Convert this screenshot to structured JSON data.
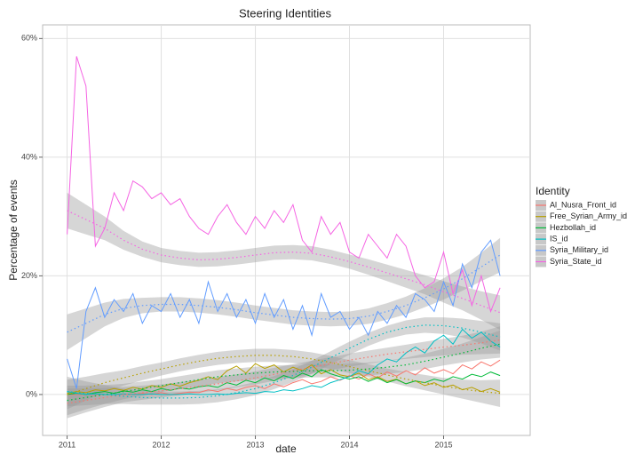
{
  "chart_data": {
    "type": "line",
    "title": "Steering Identities",
    "x_label": "date",
    "y_label": "Percentage of events",
    "legend_title": "Identity",
    "legend_position": "right",
    "grid": true,
    "xlim": [
      2010.74,
      2015.92
    ],
    "xticks": [
      2011,
      2012,
      2013,
      2014,
      2015
    ],
    "ylim": [
      -6.9,
      62.3
    ],
    "yticks": [
      {
        "value": 0,
        "label": "0%"
      },
      {
        "value": 20,
        "label": "20%"
      },
      {
        "value": 40,
        "label": "40%"
      },
      {
        "value": 60,
        "label": "60%"
      }
    ],
    "x": [
      2011,
      2011.1,
      2011.2,
      2011.3,
      2011.4,
      2011.5,
      2011.6,
      2011.7,
      2011.8,
      2011.9,
      2012,
      2012.1,
      2012.2,
      2012.3,
      2012.4,
      2012.5,
      2012.6,
      2012.7,
      2012.8,
      2012.9,
      2013,
      2013.1,
      2013.2,
      2013.3,
      2013.4,
      2013.5,
      2013.6,
      2013.7,
      2013.8,
      2013.9,
      2014,
      2014.1,
      2014.2,
      2014.3,
      2014.4,
      2014.5,
      2014.6,
      2014.7,
      2014.8,
      2014.9,
      2015,
      2015.1,
      2015.2,
      2015.3,
      2015.4,
      2015.5,
      2015.6
    ],
    "smooth_x": [
      2011,
      2011.2,
      2011.4,
      2011.6,
      2011.8,
      2012,
      2012.2,
      2012.4,
      2012.6,
      2012.8,
      2013,
      2013.2,
      2013.4,
      2013.6,
      2013.8,
      2014,
      2014.2,
      2014.4,
      2014.6,
      2014.8,
      2015,
      2015.2,
      2015.4,
      2015.6
    ],
    "series": [
      {
        "name": "Al_Nusra_Front_id",
        "color": "#F8766D",
        "values": [
          0,
          0,
          0,
          0,
          0,
          0,
          0,
          0,
          0.2,
          0,
          0.3,
          0,
          0.2,
          0.4,
          0.3,
          0.8,
          0.5,
          1,
          0.7,
          1.2,
          1.5,
          1,
          1.8,
          1.3,
          2,
          2.5,
          1.8,
          2.2,
          3,
          2.4,
          3.2,
          2.6,
          3.5,
          2.8,
          3.8,
          3.1,
          4,
          3.3,
          4.5,
          3.6,
          4.2,
          3.5,
          5,
          4.3,
          5.5,
          4.8,
          5.8
        ],
        "smooth": [
          -1.5,
          -1,
          -0.5,
          0,
          0.3,
          0.6,
          1,
          1.4,
          1.8,
          2.3,
          2.8,
          3.4,
          4,
          4.6,
          5.2,
          5.8,
          6.3,
          6.8,
          7.2,
          7.6,
          8,
          8.3,
          8.7,
          9.2
        ],
        "se": [
          2.5,
          2,
          1.6,
          1.3,
          1.2,
          1.1,
          1.1,
          1.1,
          1.1,
          1.1,
          1.1,
          1.1,
          1.1,
          1.1,
          1.1,
          1.1,
          1.1,
          1.1,
          1.2,
          1.3,
          1.4,
          1.6,
          1.9,
          2.3
        ]
      },
      {
        "name": "Free_Syrian_Army_id",
        "color": "#B79F00",
        "values": [
          0.2,
          0.5,
          0.3,
          0.8,
          0.6,
          1,
          0.7,
          1.2,
          0.9,
          1.5,
          1.2,
          1.8,
          1.4,
          2,
          2.4,
          3,
          2.5,
          4,
          4.8,
          3.6,
          5.2,
          4.4,
          5,
          3.8,
          4.6,
          4,
          5,
          3.5,
          4.2,
          3.3,
          3,
          3.6,
          2.5,
          3,
          2.2,
          2.6,
          1.8,
          2.3,
          1.5,
          2,
          1.2,
          1.6,
          0.8,
          1.2,
          0.5,
          1,
          0.4
        ],
        "smooth": [
          0,
          1,
          2,
          2.8,
          3.6,
          4.3,
          5,
          5.6,
          6.1,
          6.4,
          6.6,
          6.6,
          6.4,
          6,
          5.4,
          4.7,
          4,
          3.3,
          2.6,
          2,
          1.4,
          0.9,
          0.5,
          0.2
        ],
        "se": [
          2.5,
          2,
          1.6,
          1.3,
          1.2,
          1.1,
          1.1,
          1.1,
          1.1,
          1.1,
          1.1,
          1.1,
          1.1,
          1.1,
          1.1,
          1.1,
          1.1,
          1.1,
          1.2,
          1.3,
          1.4,
          1.6,
          1.9,
          2.3
        ]
      },
      {
        "name": "Hezbollah_id",
        "color": "#00BA38",
        "values": [
          0,
          0.2,
          0,
          0.3,
          0.5,
          0.2,
          0.6,
          0.4,
          0.8,
          0.5,
          1,
          0.7,
          1.1,
          0.9,
          1.3,
          1.5,
          1.2,
          2,
          1.6,
          2.4,
          2,
          2.8,
          2.3,
          3.2,
          2.7,
          3.6,
          3,
          4.2,
          3.5,
          3,
          2.6,
          3,
          2.2,
          2.8,
          2,
          2.5,
          1.8,
          2.3,
          2,
          2.6,
          2.2,
          3,
          2.6,
          3.4,
          3,
          3.8,
          3.2
        ],
        "smooth": [
          -1,
          -0.5,
          0,
          0.5,
          1,
          1.5,
          2,
          2.5,
          3,
          3.3,
          3.6,
          3.8,
          3.9,
          4,
          4,
          4.1,
          4.3,
          4.6,
          5,
          5.6,
          6.3,
          7,
          7.8,
          8.5
        ],
        "se": [
          2.5,
          2,
          1.6,
          1.3,
          1.2,
          1.1,
          1.1,
          1.1,
          1.1,
          1.1,
          1.1,
          1.1,
          1.1,
          1.1,
          1.1,
          1.1,
          1.1,
          1.1,
          1.2,
          1.3,
          1.4,
          1.6,
          1.9,
          2.3
        ]
      },
      {
        "name": "IS_id",
        "color": "#00BFC4",
        "values": [
          0.5,
          0.2,
          0,
          0.1,
          0,
          0,
          0.1,
          0,
          0,
          0.1,
          0,
          0,
          0,
          0.1,
          0,
          0,
          0.1,
          0,
          0.2,
          0.3,
          0.2,
          0.5,
          0.4,
          0.8,
          0.6,
          1,
          1.5,
          1.2,
          2,
          2.5,
          3,
          4,
          3.5,
          5,
          6,
          5.5,
          7,
          8,
          7,
          9,
          10,
          8.5,
          11,
          9.5,
          10.5,
          9,
          8
        ],
        "smooth": [
          0.5,
          0.2,
          0,
          -0.3,
          -0.5,
          -0.6,
          -0.6,
          -0.5,
          -0.2,
          0.3,
          1,
          2,
          3.2,
          4.6,
          6.2,
          7.8,
          9.3,
          10.5,
          11.3,
          11.7,
          11.6,
          11.2,
          10.5,
          9.7
        ],
        "se": [
          2.5,
          2,
          1.6,
          1.3,
          1.2,
          1.1,
          1.1,
          1.1,
          1.1,
          1.1,
          1.1,
          1.1,
          1.1,
          1.1,
          1.1,
          1.1,
          1.1,
          1.1,
          1.2,
          1.3,
          1.4,
          1.6,
          1.9,
          2.3
        ]
      },
      {
        "name": "Syria_Military_id",
        "color": "#619CFF",
        "values": [
          6,
          1,
          14,
          18,
          13,
          16,
          14,
          17,
          12,
          15,
          14,
          17,
          13,
          16,
          12,
          19,
          14,
          17,
          13,
          16,
          12,
          17,
          13,
          16,
          11,
          15,
          10,
          17,
          13,
          14,
          11,
          13,
          10,
          14,
          12,
          15,
          13,
          17,
          16,
          14,
          19,
          15,
          22,
          18,
          24,
          26,
          20
        ],
        "smooth": [
          10.5,
          12,
          13.5,
          14.5,
          15,
          15.2,
          15.2,
          15,
          14.7,
          14.3,
          13.8,
          13.4,
          13,
          12.8,
          12.7,
          12.8,
          13.2,
          14,
          15,
          16.3,
          17.8,
          19.5,
          21.5,
          23.5
        ],
        "se": [
          3,
          2.5,
          2,
          1.6,
          1.3,
          1.2,
          1.2,
          1.2,
          1.2,
          1.2,
          1.2,
          1.2,
          1.2,
          1.2,
          1.2,
          1.2,
          1.3,
          1.4,
          1.5,
          1.6,
          1.8,
          2,
          2.4,
          2.9
        ]
      },
      {
        "name": "Syria_State_id",
        "color": "#F564E3",
        "values": [
          27,
          57,
          52,
          25,
          28,
          34,
          31,
          36,
          35,
          33,
          34,
          32,
          33,
          30,
          28,
          27,
          30,
          32,
          29,
          27,
          30,
          28,
          31,
          29,
          32,
          26,
          24,
          30,
          27,
          29,
          24,
          23,
          27,
          25,
          23,
          27,
          25,
          20,
          18,
          19,
          24,
          17,
          21,
          15,
          20,
          14,
          18
        ],
        "smooth": [
          31,
          29.5,
          28,
          26,
          24.5,
          23.5,
          23,
          22.7,
          22.8,
          23.1,
          23.5,
          23.9,
          24,
          23.8,
          23.2,
          22.4,
          21.5,
          20.5,
          19.5,
          18.5,
          17.3,
          16.2,
          15,
          13.8
        ],
        "se": [
          3,
          2.5,
          2,
          1.6,
          1.3,
          1.2,
          1.2,
          1.2,
          1.2,
          1.2,
          1.2,
          1.2,
          1.2,
          1.2,
          1.2,
          1.2,
          1.3,
          1.4,
          1.5,
          1.6,
          1.8,
          2,
          2.4,
          2.9
        ]
      }
    ]
  }
}
